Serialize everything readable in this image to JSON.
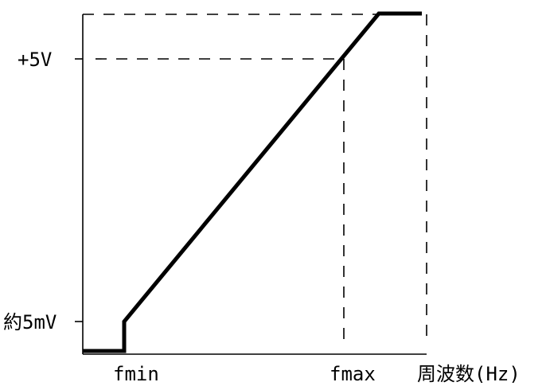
{
  "diagram": {
    "y_labels": {
      "top": "+5V",
      "bottom": "約5mV"
    },
    "x_labels": {
      "min": "fmin",
      "max": "fmax",
      "unit": "周波数(Hz)"
    }
  }
}
